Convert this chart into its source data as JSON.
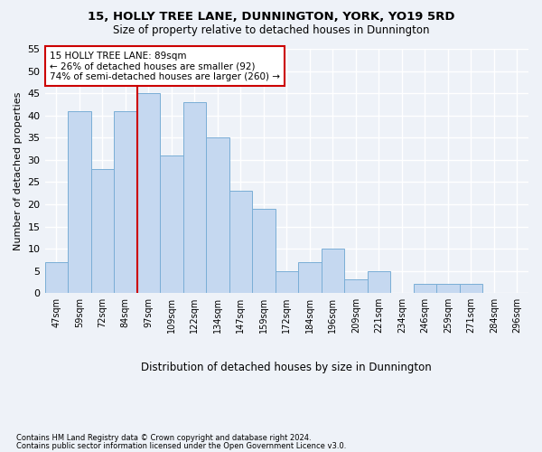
{
  "title1": "15, HOLLY TREE LANE, DUNNINGTON, YORK, YO19 5RD",
  "title2": "Size of property relative to detached houses in Dunnington",
  "xlabel": "Distribution of detached houses by size in Dunnington",
  "ylabel": "Number of detached properties",
  "bar_labels": [
    "47sqm",
    "59sqm",
    "72sqm",
    "84sqm",
    "97sqm",
    "109sqm",
    "122sqm",
    "134sqm",
    "147sqm",
    "159sqm",
    "172sqm",
    "184sqm",
    "196sqm",
    "209sqm",
    "221sqm",
    "234sqm",
    "246sqm",
    "259sqm",
    "271sqm",
    "284sqm",
    "296sqm"
  ],
  "bar_values": [
    7,
    41,
    28,
    41,
    45,
    31,
    43,
    35,
    23,
    19,
    5,
    7,
    10,
    3,
    5,
    0,
    2,
    2,
    2,
    0,
    0
  ],
  "bar_color": "#c5d8f0",
  "bar_edge_color": "#7aaed6",
  "ylim": [
    0,
    55
  ],
  "yticks": [
    0,
    5,
    10,
    15,
    20,
    25,
    30,
    35,
    40,
    45,
    50,
    55
  ],
  "property_line_index": 3.5,
  "annotation_text": "15 HOLLY TREE LANE: 89sqm\n← 26% of detached houses are smaller (92)\n74% of semi-detached houses are larger (260) →",
  "annotation_box_color": "#ffffff",
  "annotation_border_color": "#cc0000",
  "vline_color": "#cc0000",
  "footnote1": "Contains HM Land Registry data © Crown copyright and database right 2024.",
  "footnote2": "Contains public sector information licensed under the Open Government Licence v3.0.",
  "background_color": "#eef2f8",
  "grid_color": "#ffffff"
}
